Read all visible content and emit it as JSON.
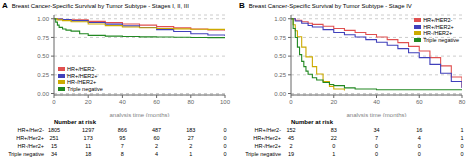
{
  "chart_data": [
    {
      "type": "step",
      "panel_label": "A",
      "title": "Breast Cancer-Specific Survival by Tumor Subtype - Stages I, II, III",
      "x_label": "analysis time (months)",
      "xlim": [
        0,
        100
      ],
      "ylim": [
        -0.02,
        1.05
      ],
      "xticks": [
        0,
        20,
        40,
        60,
        80,
        100
      ],
      "yticks": [
        {
          "value": 0.0,
          "label": "0.00"
        },
        {
          "value": 0.25,
          "label": "0.25"
        },
        {
          "value": 0.5,
          "label": "0.50"
        },
        {
          "value": 0.75,
          "label": "0.75"
        },
        {
          "value": 1.0,
          "label": "1.00"
        }
      ],
      "grid": "y",
      "legend": "lower left",
      "series": [
        {
          "name": "HR+/HER2-",
          "color": "#e05050",
          "x": [
            0,
            2,
            5,
            10,
            20,
            30,
            40,
            50,
            60,
            70,
            80,
            90,
            100
          ],
          "values": [
            1.0,
            0.995,
            0.99,
            0.985,
            0.965,
            0.948,
            0.93,
            0.915,
            0.895,
            0.878,
            0.862,
            0.85,
            0.84
          ]
        },
        {
          "name": "HR+/HER2+",
          "color": "#4040bb",
          "x": [
            0,
            2,
            5,
            10,
            20,
            30,
            40,
            50,
            60,
            70,
            80,
            90,
            100
          ],
          "values": [
            1.0,
            0.995,
            0.988,
            0.975,
            0.95,
            0.928,
            0.905,
            0.882,
            0.855,
            0.83,
            0.8,
            0.782,
            0.768
          ]
        },
        {
          "name": "HR-/HER2+",
          "color": "#ccaa00",
          "x": [
            0,
            2,
            5,
            10,
            20,
            30,
            40,
            50,
            60,
            70,
            80,
            90,
            100
          ],
          "values": [
            1.0,
            0.985,
            0.975,
            0.96,
            0.93,
            0.908,
            0.89,
            0.88,
            0.87,
            0.865,
            0.86,
            0.858,
            0.855
          ]
        },
        {
          "name": "Triple negative",
          "color": "#228822",
          "x": [
            0,
            1,
            2,
            3,
            5,
            7,
            10,
            15,
            20,
            30,
            40,
            50,
            60,
            70,
            80,
            90,
            100
          ],
          "values": [
            1.0,
            0.955,
            0.915,
            0.885,
            0.862,
            0.848,
            0.835,
            0.8,
            0.778,
            0.768,
            0.762,
            0.758,
            0.755,
            0.752,
            0.75,
            0.748,
            0.746
          ]
        }
      ],
      "risk_table": {
        "header": "Number at risk",
        "labels": [
          "HR+/Her2-",
          "HR+/Her2+",
          "HR-/Her2+",
          "Triple negative"
        ],
        "times": [
          0,
          20,
          40,
          60,
          80,
          100
        ],
        "counts": [
          [
            1805,
            1297,
            866,
            487,
            183,
            0
          ],
          [
            251,
            173,
            95,
            60,
            27,
            0
          ],
          [
            15,
            11,
            7,
            2,
            2,
            0
          ],
          [
            34,
            18,
            8,
            4,
            1,
            0
          ]
        ]
      }
    },
    {
      "type": "step",
      "panel_label": "B",
      "title": "Breast Cancer-Specific Survival by Tumor Subtype - Stage IV",
      "x_label": "analysis time (months)",
      "xlim": [
        0,
        80
      ],
      "ylim": [
        -0.02,
        1.05
      ],
      "xticks": [
        0,
        20,
        40,
        60,
        80
      ],
      "yticks": [
        {
          "value": 0.0,
          "label": "0.00"
        },
        {
          "value": 0.25,
          "label": "0.25"
        },
        {
          "value": 0.5,
          "label": "0.50"
        },
        {
          "value": 0.75,
          "label": "0.75"
        },
        {
          "value": 1.0,
          "label": "1.00"
        }
      ],
      "grid": "y",
      "legend": "upper right",
      "series": [
        {
          "name": "HR+/HER2-",
          "color": "#e05050",
          "x": [
            0,
            2,
            5,
            8,
            10,
            15,
            20,
            25,
            30,
            35,
            40,
            45,
            50,
            55,
            60,
            65,
            70,
            75,
            80
          ],
          "values": [
            1.0,
            0.98,
            0.96,
            0.94,
            0.925,
            0.9,
            0.87,
            0.845,
            0.815,
            0.79,
            0.755,
            0.72,
            0.68,
            0.63,
            0.568,
            0.48,
            0.37,
            0.22,
            0.08
          ]
        },
        {
          "name": "HR+/HER2+",
          "color": "#4040bb",
          "x": [
            0,
            2,
            5,
            8,
            10,
            15,
            20,
            25,
            30,
            35,
            40,
            45,
            50,
            55,
            60,
            65,
            70,
            75,
            80
          ],
          "values": [
            1.0,
            0.97,
            0.94,
            0.91,
            0.89,
            0.855,
            0.815,
            0.785,
            0.755,
            0.72,
            0.685,
            0.645,
            0.6,
            0.545,
            0.48,
            0.39,
            0.27,
            0.16,
            0.075
          ]
        },
        {
          "name": "HR-/HER2+",
          "color": "#ccaa00",
          "x": [
            0,
            1,
            2,
            3,
            5,
            7,
            10,
            12,
            15,
            18,
            20,
            25
          ],
          "values": [
            1.0,
            0.92,
            0.84,
            0.76,
            0.62,
            0.49,
            0.36,
            0.26,
            0.16,
            0.095,
            0.06,
            0.04
          ]
        },
        {
          "name": "Triple negative",
          "color": "#228822",
          "x": [
            0,
            1,
            2,
            3,
            4,
            5,
            6,
            7,
            8,
            10,
            12,
            15,
            18,
            20,
            25,
            30,
            40,
            80
          ],
          "values": [
            1.0,
            0.87,
            0.75,
            0.62,
            0.52,
            0.43,
            0.36,
            0.3,
            0.258,
            0.21,
            0.18,
            0.148,
            0.12,
            0.105,
            0.075,
            0.06,
            0.05,
            0.048
          ]
        }
      ],
      "risk_table": {
        "header": "Number at risk",
        "labels": [
          "HR+/Her2-",
          "HR+/Her2+",
          "HR-/Her2+",
          "Triple negative"
        ],
        "times": [
          0,
          20,
          40,
          60,
          80
        ],
        "counts": [
          [
            152,
            83,
            34,
            16,
            1
          ],
          [
            45,
            22,
            7,
            4,
            1
          ],
          [
            2,
            0,
            0,
            0,
            0
          ],
          [
            19,
            1,
            0,
            0,
            0
          ]
        ]
      }
    }
  ]
}
